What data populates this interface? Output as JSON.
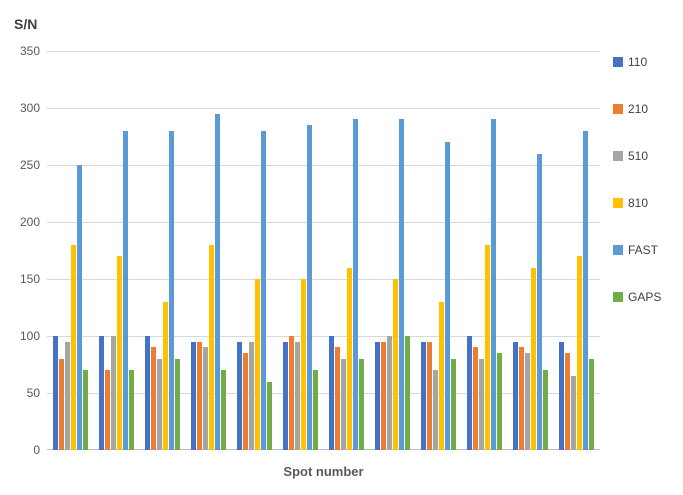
{
  "chart": {
    "y_axis_title": "S/N",
    "x_axis_title": "Spot number",
    "y_tick_labels_top_to_bottom": [
      "350",
      "300",
      "250",
      "200",
      "150",
      "100",
      "50",
      "0"
    ]
  },
  "chart_data": {
    "type": "bar",
    "title": "",
    "xlabel": "Spot number",
    "ylabel": "S/N",
    "ylim": [
      0,
      350
    ],
    "y_tick_step": 50,
    "grid": true,
    "legend_position": "right",
    "num_groups": 12,
    "x_tick_labels_visible": false,
    "series": [
      {
        "name": "110",
        "color": "#4472C4",
        "values": [
          100,
          100,
          100,
          95,
          95,
          95,
          100,
          95,
          95,
          100,
          95,
          95
        ]
      },
      {
        "name": "210",
        "color": "#ED7D31",
        "values": [
          80,
          70,
          90,
          95,
          85,
          100,
          90,
          95,
          95,
          90,
          90,
          85
        ]
      },
      {
        "name": "510",
        "color": "#A5A5A5",
        "values": [
          95,
          100,
          80,
          90,
          95,
          95,
          80,
          100,
          70,
          80,
          85,
          65
        ]
      },
      {
        "name": "810",
        "color": "#FFC000",
        "values": [
          180,
          170,
          130,
          180,
          150,
          150,
          160,
          150,
          130,
          180,
          160,
          170
        ]
      },
      {
        "name": "FAST",
        "color": "#5B9BD5",
        "values": [
          250,
          280,
          280,
          295,
          280,
          285,
          290,
          290,
          270,
          290,
          260,
          280
        ]
      },
      {
        "name": "GAPS",
        "color": "#70AD47",
        "values": [
          70,
          70,
          80,
          70,
          60,
          70,
          80,
          100,
          80,
          85,
          70,
          80
        ]
      }
    ],
    "colors": {
      "gridline": "#d9d9d9",
      "axis_line": "#bfbfbf",
      "tick_text": "#595959",
      "axis_title_text": "#404040"
    }
  }
}
